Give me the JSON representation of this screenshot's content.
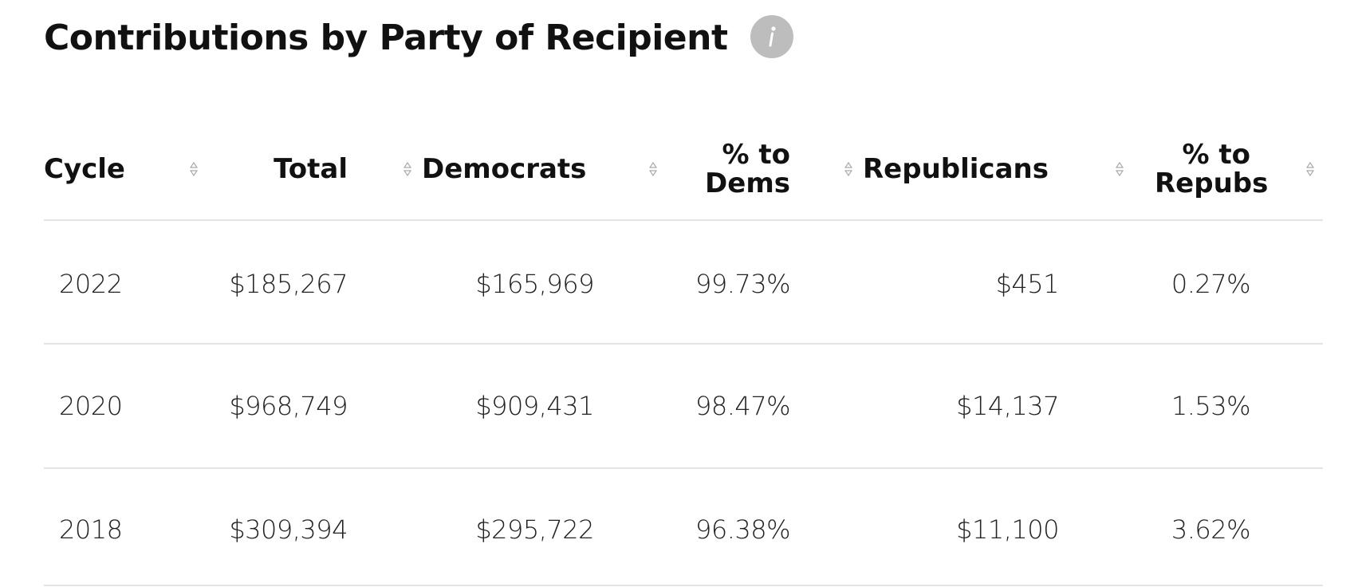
{
  "header": {
    "title": "Contributions by Party of Recipient"
  },
  "table": {
    "headers": [
      "Cycle",
      "Total",
      "Democrats",
      "% to Dems",
      "Republicans",
      "% to Repubs"
    ],
    "rows": [
      [
        "2022",
        "$185,267",
        "$165,969",
        "99.73%",
        "$451",
        "0.27%"
      ],
      [
        "2020",
        "$968,749",
        "$909,431",
        "98.47%",
        "$14,137",
        "1.53%"
      ],
      [
        "2018",
        "$309,394",
        "$295,722",
        "96.38%",
        "$11,100",
        "3.62%"
      ]
    ]
  }
}
